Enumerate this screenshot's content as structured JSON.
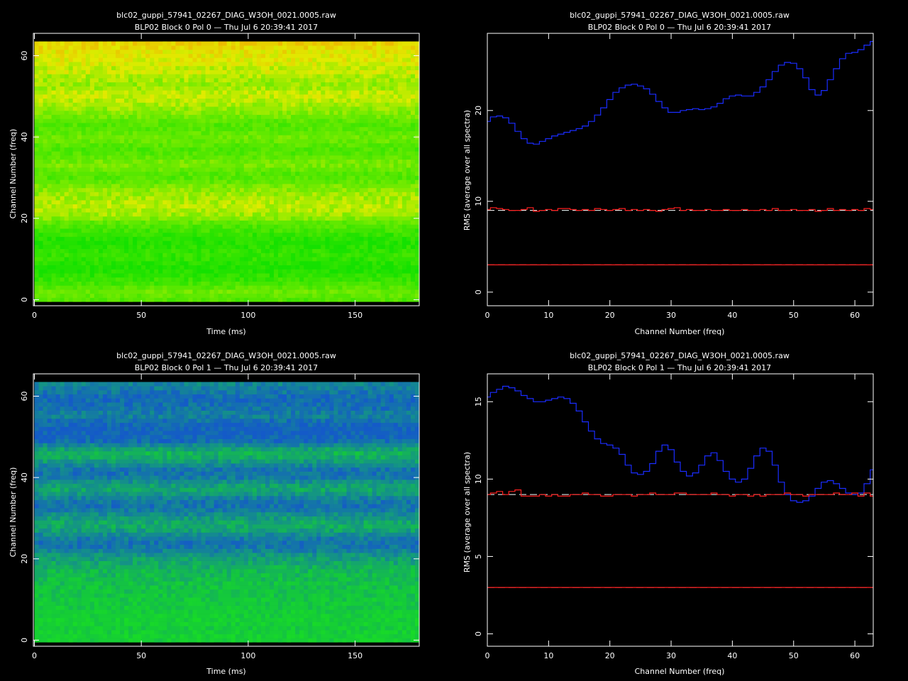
{
  "colors": {
    "background": "#000000",
    "axes": "#ffffff",
    "rms_pol0": "#1a2cff",
    "rms_pol1": "#1a2cff",
    "threshold": "#ff2020",
    "dashed_reference": "#ffffff"
  },
  "chart_data": [
    {
      "id": "p00",
      "type": "heatmap",
      "title": "blc02_guppi_57941_02267_DIAG_W3OH_0021.0005.raw",
      "subtitle": "BLP02 Block 0 Pol 0 — Thu Jul  6 20:39:41 2017",
      "xlabel": "Time (ms)",
      "ylabel": "Channel Number (freq)",
      "xlim": [
        -0.5,
        180.0
      ],
      "ylim": [
        -1.5,
        65.5
      ],
      "xticks": [
        0,
        50,
        100,
        150
      ],
      "yticks": [
        0,
        20,
        40,
        60
      ],
      "time_range": [
        0,
        179
      ],
      "channel_range": [
        0,
        63
      ],
      "colormap": "green-yellow",
      "channel_bands": [
        [
          0,
          0.28
        ],
        [
          1,
          0.34
        ],
        [
          2,
          0.38
        ],
        [
          3,
          0.3
        ],
        [
          4,
          0.22
        ],
        [
          5,
          0.16
        ],
        [
          6,
          0.1
        ],
        [
          7,
          0.06
        ],
        [
          8,
          0.05
        ],
        [
          9,
          0.08
        ],
        [
          10,
          0.12
        ],
        [
          11,
          0.14
        ],
        [
          12,
          0.12
        ],
        [
          13,
          0.09
        ],
        [
          14,
          0.06
        ],
        [
          15,
          0.08
        ],
        [
          16,
          0.14
        ],
        [
          17,
          0.2
        ],
        [
          18,
          0.26
        ],
        [
          19,
          0.34
        ],
        [
          20,
          0.46
        ],
        [
          21,
          0.54
        ],
        [
          22,
          0.58
        ],
        [
          23,
          0.6
        ],
        [
          24,
          0.58
        ],
        [
          25,
          0.55
        ],
        [
          26,
          0.52
        ],
        [
          27,
          0.48
        ],
        [
          28,
          0.42
        ],
        [
          29,
          0.34
        ],
        [
          30,
          0.28
        ],
        [
          31,
          0.3
        ],
        [
          32,
          0.36
        ],
        [
          33,
          0.42
        ],
        [
          34,
          0.4
        ],
        [
          35,
          0.34
        ],
        [
          36,
          0.28
        ],
        [
          37,
          0.26
        ],
        [
          38,
          0.3
        ],
        [
          39,
          0.36
        ],
        [
          40,
          0.38
        ],
        [
          41,
          0.34
        ],
        [
          42,
          0.3
        ],
        [
          43,
          0.28
        ],
        [
          44,
          0.33
        ],
        [
          45,
          0.4
        ],
        [
          46,
          0.46
        ],
        [
          47,
          0.52
        ],
        [
          48,
          0.56
        ],
        [
          49,
          0.6
        ],
        [
          50,
          0.63
        ],
        [
          51,
          0.62
        ],
        [
          52,
          0.55
        ],
        [
          53,
          0.52
        ],
        [
          54,
          0.55
        ],
        [
          55,
          0.58
        ],
        [
          56,
          0.66
        ],
        [
          57,
          0.62
        ],
        [
          58,
          0.68
        ],
        [
          59,
          0.7
        ],
        [
          60,
          0.72
        ],
        [
          61,
          0.74
        ],
        [
          62,
          0.78
        ],
        [
          63,
          0.82
        ]
      ]
    },
    {
      "id": "p01",
      "type": "line",
      "title": "blc02_guppi_57941_02267_DIAG_W3OH_0021.0005.raw",
      "subtitle": "BLP02 Block 0 Pol 0 — Thu Jul  6 20:39:41 2017",
      "xlabel": "Channel Number (freq)",
      "ylabel": "RMS (average over all spectra)",
      "xlim": [
        0,
        63
      ],
      "ylim": [
        -1.5,
        28.5
      ],
      "xticks": [
        0,
        10,
        20,
        30,
        40,
        50,
        60
      ],
      "yticks": [
        0,
        10,
        20
      ],
      "step": true,
      "series": [
        {
          "role": "rms",
          "color": "#1a2cff",
          "values": [
            18.8,
            19.3,
            19.4,
            19.2,
            18.6,
            17.7,
            16.9,
            16.4,
            16.3,
            16.6,
            16.9,
            17.2,
            17.4,
            17.6,
            17.8,
            18.0,
            18.3,
            18.8,
            19.5,
            20.3,
            21.2,
            22.0,
            22.5,
            22.8,
            22.9,
            22.7,
            22.4,
            21.8,
            21.0,
            20.3,
            19.8,
            19.8,
            20.0,
            20.1,
            20.2,
            20.1,
            20.2,
            20.4,
            20.8,
            21.3,
            21.6,
            21.7,
            21.6,
            21.6,
            22.0,
            22.6,
            23.4,
            24.3,
            25.0,
            25.3,
            25.2,
            24.6,
            23.6,
            22.3,
            21.7,
            22.2,
            23.4,
            24.6,
            25.7,
            26.3,
            26.4,
            26.7,
            27.2,
            27.6
          ]
        },
        {
          "role": "threshold",
          "color": "#ff2020",
          "values": [
            9.1,
            9.3,
            9.2,
            9.1,
            9.0,
            9.0,
            9.1,
            9.3,
            8.9,
            9.0,
            9.1,
            9.0,
            9.2,
            9.2,
            9.1,
            9.0,
            9.1,
            9.0,
            9.2,
            9.1,
            9.0,
            9.1,
            9.2,
            9.0,
            9.1,
            9.0,
            9.1,
            9.0,
            8.9,
            9.1,
            9.2,
            9.3,
            9.0,
            9.1,
            9.0,
            9.0,
            9.1,
            9.0,
            9.0,
            9.1,
            9.0,
            9.0,
            9.1,
            9.0,
            9.0,
            9.1,
            9.0,
            9.2,
            9.0,
            9.0,
            9.1,
            9.0,
            9.0,
            9.1,
            8.9,
            9.0,
            9.2,
            9.0,
            9.1,
            9.0,
            9.1,
            9.0,
            9.2,
            9.1
          ]
        },
        {
          "role": "threshold_low",
          "color": "#ff2020",
          "values": [
            3.0,
            3.0,
            3.0,
            3.0,
            3.0,
            3.0,
            3.0,
            3.0,
            3.0,
            3.0,
            3.0,
            3.0,
            3.0,
            3.0,
            3.0,
            3.0,
            3.0,
            3.0,
            3.0,
            3.0,
            3.0,
            3.0,
            3.0,
            3.0,
            3.0,
            3.0,
            3.0,
            3.0,
            3.0,
            3.0,
            3.0,
            3.0,
            3.0,
            3.0,
            3.0,
            3.0,
            3.0,
            3.0,
            3.0,
            3.0,
            3.0,
            3.0,
            3.0,
            3.0,
            3.0,
            3.0,
            3.0,
            3.0,
            3.0,
            3.0,
            3.0,
            3.0,
            3.0,
            3.0,
            3.0,
            3.0,
            3.0,
            3.0,
            3.0,
            3.0,
            3.0,
            3.0,
            3.0,
            3.0
          ]
        }
      ],
      "reference_lines": [
        9.0,
        3.0
      ]
    },
    {
      "id": "p10",
      "type": "heatmap",
      "title": "blc02_guppi_57941_02267_DIAG_W3OH_0021.0005.raw",
      "subtitle": "BLP02 Block 0 Pol 1 — Thu Jul  6 20:39:41 2017",
      "xlabel": "Time (ms)",
      "ylabel": "Channel Number (freq)",
      "xlim": [
        -0.5,
        180.0
      ],
      "ylim": [
        -1.5,
        65.5
      ],
      "xticks": [
        0,
        50,
        100,
        150
      ],
      "yticks": [
        0,
        20,
        40,
        60
      ],
      "time_range": [
        0,
        179
      ],
      "channel_range": [
        0,
        63
      ],
      "colormap": "blue-green",
      "channel_bands": [
        [
          0,
          0.62
        ],
        [
          1,
          0.64
        ],
        [
          2,
          0.62
        ],
        [
          3,
          0.6
        ],
        [
          4,
          0.62
        ],
        [
          5,
          0.63
        ],
        [
          6,
          0.61
        ],
        [
          7,
          0.6
        ],
        [
          8,
          0.58
        ],
        [
          9,
          0.58
        ],
        [
          10,
          0.57
        ],
        [
          11,
          0.55
        ],
        [
          12,
          0.54
        ],
        [
          13,
          0.53
        ],
        [
          14,
          0.52
        ],
        [
          15,
          0.5
        ],
        [
          16,
          0.48
        ],
        [
          17,
          0.46
        ],
        [
          18,
          0.42
        ],
        [
          19,
          0.38
        ],
        [
          20,
          0.34
        ],
        [
          21,
          0.28
        ],
        [
          22,
          0.2
        ],
        [
          23,
          0.14
        ],
        [
          24,
          0.12
        ],
        [
          25,
          0.16
        ],
        [
          26,
          0.24
        ],
        [
          27,
          0.34
        ],
        [
          28,
          0.4
        ],
        [
          29,
          0.38
        ],
        [
          30,
          0.32
        ],
        [
          31,
          0.24
        ],
        [
          32,
          0.16
        ],
        [
          33,
          0.12
        ],
        [
          34,
          0.14
        ],
        [
          35,
          0.2
        ],
        [
          36,
          0.3
        ],
        [
          37,
          0.38
        ],
        [
          38,
          0.34
        ],
        [
          39,
          0.26
        ],
        [
          40,
          0.16
        ],
        [
          41,
          0.12
        ],
        [
          42,
          0.14
        ],
        [
          43,
          0.22
        ],
        [
          44,
          0.32
        ],
        [
          45,
          0.4
        ],
        [
          46,
          0.44
        ],
        [
          47,
          0.36
        ],
        [
          48,
          0.22
        ],
        [
          49,
          0.1
        ],
        [
          50,
          0.04
        ],
        [
          51,
          0.02
        ],
        [
          52,
          0.03
        ],
        [
          53,
          0.06
        ],
        [
          54,
          0.12
        ],
        [
          55,
          0.18
        ],
        [
          56,
          0.16
        ],
        [
          57,
          0.12
        ],
        [
          58,
          0.1
        ],
        [
          59,
          0.08
        ],
        [
          60,
          0.1
        ],
        [
          61,
          0.14
        ],
        [
          62,
          0.18
        ],
        [
          63,
          0.22
        ]
      ]
    },
    {
      "id": "p11",
      "type": "line",
      "title": "blc02_guppi_57941_02267_DIAG_W3OH_0021.0005.raw",
      "subtitle": "BLP02 Block 0 Pol 1 — Thu Jul  6 20:39:41 2017",
      "xlabel": "Channel Number (freq)",
      "ylabel": "RMS (average over all spectra)",
      "xlim": [
        0,
        63
      ],
      "ylim": [
        -0.8,
        16.8
      ],
      "xticks": [
        0,
        10,
        20,
        30,
        40,
        50,
        60
      ],
      "yticks": [
        0,
        5,
        10,
        15
      ],
      "step": true,
      "series": [
        {
          "role": "rms",
          "color": "#1a2cff",
          "values": [
            15.3,
            15.6,
            15.8,
            16.0,
            15.9,
            15.7,
            15.4,
            15.2,
            15.0,
            15.0,
            15.1,
            15.2,
            15.3,
            15.2,
            14.9,
            14.4,
            13.7,
            13.1,
            12.6,
            12.3,
            12.2,
            12.0,
            11.6,
            10.9,
            10.4,
            10.3,
            10.5,
            11.0,
            11.8,
            12.2,
            11.9,
            11.1,
            10.5,
            10.2,
            10.4,
            10.9,
            11.5,
            11.7,
            11.2,
            10.5,
            10.0,
            9.8,
            10.0,
            10.7,
            11.5,
            12.0,
            11.8,
            10.9,
            9.8,
            9.0,
            8.6,
            8.5,
            8.6,
            8.9,
            9.4,
            9.8,
            9.9,
            9.7,
            9.4,
            9.1,
            9.0,
            9.1,
            9.7,
            10.6
          ]
        },
        {
          "role": "threshold",
          "color": "#ff2020",
          "values": [
            9.0,
            9.1,
            9.2,
            9.0,
            9.2,
            9.3,
            8.9,
            8.9,
            8.9,
            9.0,
            8.9,
            9.0,
            8.9,
            8.9,
            9.0,
            9.0,
            9.1,
            9.0,
            9.0,
            8.9,
            8.9,
            9.0,
            9.0,
            9.0,
            8.9,
            9.0,
            9.0,
            9.1,
            9.0,
            9.0,
            9.0,
            9.1,
            9.1,
            9.0,
            9.0,
            9.0,
            9.0,
            9.1,
            9.0,
            9.0,
            8.9,
            9.0,
            9.0,
            8.9,
            9.0,
            8.9,
            9.0,
            9.0,
            9.0,
            9.1,
            9.0,
            9.0,
            8.9,
            9.0,
            9.0,
            9.0,
            9.0,
            9.1,
            9.0,
            9.0,
            9.1,
            8.9,
            9.1,
            8.9
          ]
        },
        {
          "role": "threshold_low",
          "color": "#ff2020",
          "values": [
            3.0,
            3.0,
            3.0,
            3.0,
            3.0,
            3.0,
            3.0,
            3.0,
            3.0,
            3.0,
            3.0,
            3.0,
            3.0,
            3.0,
            3.0,
            3.0,
            3.0,
            3.0,
            3.0,
            3.0,
            3.0,
            3.0,
            3.0,
            3.0,
            3.0,
            3.0,
            3.0,
            3.0,
            3.0,
            3.0,
            3.0,
            3.0,
            3.0,
            3.0,
            3.0,
            3.0,
            3.0,
            3.0,
            3.0,
            3.0,
            3.0,
            3.0,
            3.0,
            3.0,
            3.0,
            3.0,
            3.0,
            3.0,
            3.0,
            3.0,
            3.0,
            3.0,
            3.0,
            3.0,
            3.0,
            3.0,
            3.0,
            3.0,
            3.0,
            3.0,
            3.0,
            3.0,
            3.0,
            3.0
          ]
        }
      ],
      "reference_lines": [
        9.0,
        3.0
      ]
    }
  ]
}
